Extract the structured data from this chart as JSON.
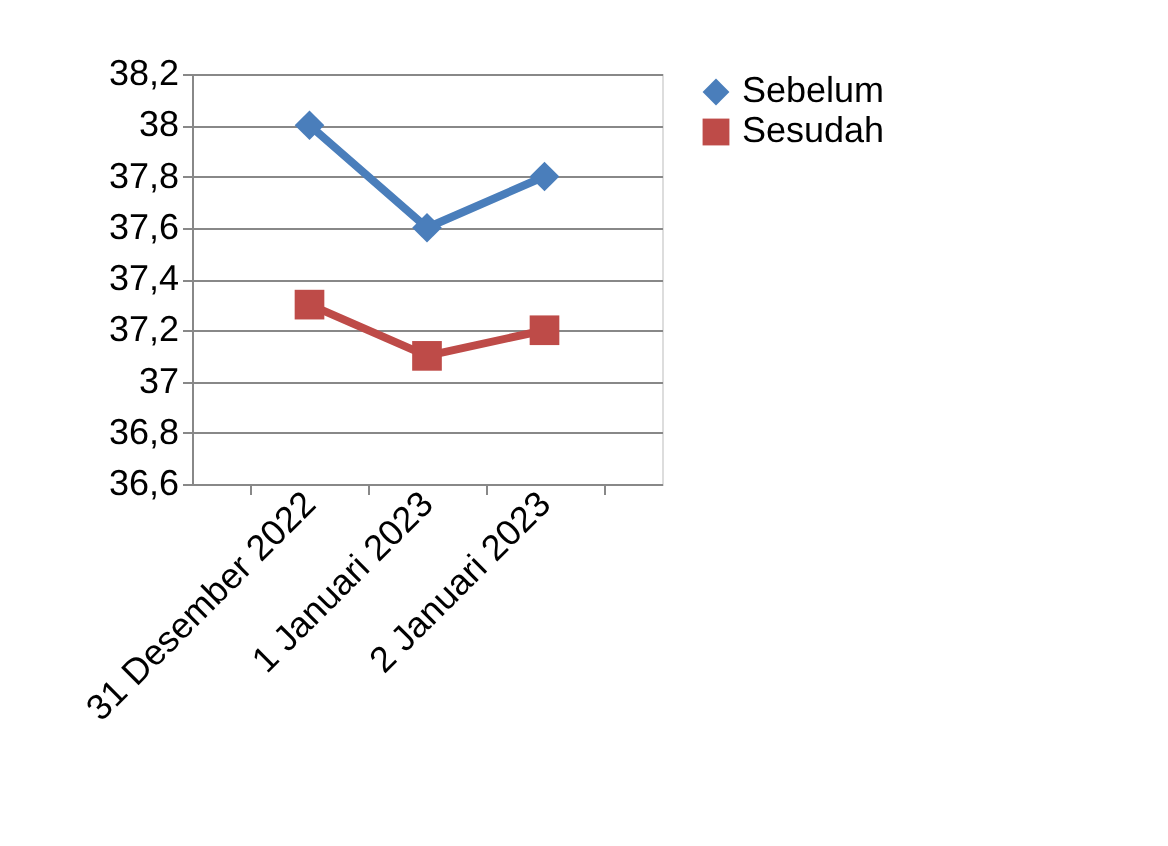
{
  "chart_data": {
    "type": "line",
    "categories": [
      "31 Desember 2022",
      "1 Januari 2023",
      "2 Januari 2023"
    ],
    "series": [
      {
        "name": "Sebelum",
        "color": "#4a7ebb",
        "values": [
          38,
          37.6,
          37.8
        ],
        "marker": "diamond"
      },
      {
        "name": "Sesudah",
        "color": "#be4b48",
        "values": [
          37.3,
          37.1,
          37.2
        ],
        "marker": "square"
      }
    ],
    "ylim": [
      36.6,
      38.2
    ],
    "yticks": [
      {
        "value": 36.6,
        "label": "36,6"
      },
      {
        "value": 36.8,
        "label": "36,8"
      },
      {
        "value": 37,
        "label": "37"
      },
      {
        "value": 37.2,
        "label": "37,2"
      },
      {
        "value": 37.4,
        "label": "37,4"
      },
      {
        "value": 37.6,
        "label": "37,6"
      },
      {
        "value": 37.8,
        "label": "37,8"
      },
      {
        "value": 38,
        "label": "38"
      },
      {
        "value": 38.2,
        "label": "38,2"
      }
    ],
    "grid": "y",
    "legend": "right",
    "line_style": "solid"
  }
}
